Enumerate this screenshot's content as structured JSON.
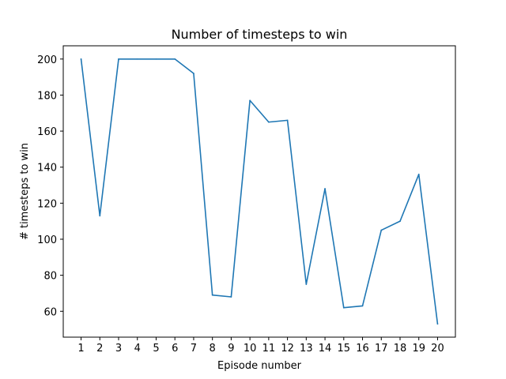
{
  "chart_data": {
    "type": "line",
    "title": "Number of timesteps to win",
    "xlabel": "Episode number",
    "ylabel": "# timesteps to win",
    "x": [
      1,
      2,
      3,
      4,
      5,
      6,
      7,
      8,
      9,
      10,
      11,
      12,
      13,
      14,
      15,
      16,
      17,
      18,
      19,
      20
    ],
    "series": [
      {
        "values": [
          200,
          113,
          200,
          200,
          200,
          200,
          192,
          69,
          68,
          177,
          165,
          166,
          75,
          128,
          62,
          63,
          105,
          110,
          136,
          53
        ],
        "color": "#1f77b4"
      }
    ],
    "xticks": [
      1,
      2,
      3,
      4,
      5,
      6,
      7,
      8,
      9,
      10,
      11,
      12,
      13,
      14,
      15,
      16,
      17,
      18,
      19,
      20
    ],
    "yticks": [
      60,
      80,
      100,
      120,
      140,
      160,
      180,
      200
    ],
    "xlim": [
      0.05,
      20.95
    ],
    "ylim": [
      45.65,
      207.35
    ],
    "grid": false,
    "legend": "none"
  }
}
